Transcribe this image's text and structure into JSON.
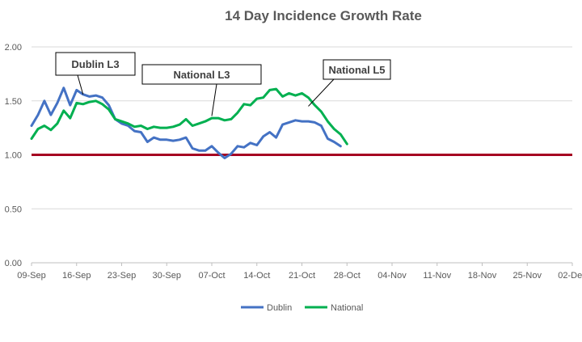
{
  "chart_data": {
    "type": "line",
    "title": "14 Day Incidence Growth Rate",
    "xlabel": "",
    "ylabel": "",
    "ylim": [
      0,
      2
    ],
    "y_ticks": [
      "0.00",
      "0.50",
      "1.00",
      "1.50",
      "2.00"
    ],
    "x_ticks": [
      "09-Sep",
      "16-Sep",
      "23-Sep",
      "30-Sep",
      "07-Oct",
      "14-Oct",
      "21-Oct",
      "28-Oct",
      "04-Nov",
      "11-Nov",
      "18-Nov",
      "25-Nov",
      "02-Dec"
    ],
    "x_start_day": 0,
    "x_end_day": 84,
    "reference_line": {
      "value": 1.0,
      "color": "#a50021"
    },
    "series": [
      {
        "name": "Dublin",
        "color": "#4472c4",
        "start_day": 0,
        "values": [
          1.27,
          1.37,
          1.5,
          1.37,
          1.48,
          1.62,
          1.46,
          1.6,
          1.56,
          1.54,
          1.55,
          1.53,
          1.46,
          1.33,
          1.29,
          1.27,
          1.22,
          1.21,
          1.12,
          1.16,
          1.14,
          1.14,
          1.13,
          1.14,
          1.16,
          1.06,
          1.04,
          1.04,
          1.08,
          1.02,
          0.97,
          1.01,
          1.08,
          1.07,
          1.11,
          1.09,
          1.17,
          1.21,
          1.16,
          1.28,
          1.3,
          1.32,
          1.31,
          1.31,
          1.3,
          1.27,
          1.15,
          1.12,
          1.08
        ]
      },
      {
        "name": "National",
        "color": "#00b050",
        "start_day": 0,
        "values": [
          1.15,
          1.24,
          1.27,
          1.23,
          1.29,
          1.41,
          1.34,
          1.48,
          1.47,
          1.49,
          1.5,
          1.47,
          1.42,
          1.33,
          1.31,
          1.29,
          1.26,
          1.27,
          1.24,
          1.26,
          1.25,
          1.25,
          1.26,
          1.28,
          1.33,
          1.27,
          1.29,
          1.31,
          1.34,
          1.34,
          1.32,
          1.33,
          1.39,
          1.47,
          1.46,
          1.52,
          1.53,
          1.6,
          1.61,
          1.54,
          1.57,
          1.55,
          1.57,
          1.53,
          1.46,
          1.4,
          1.31,
          1.24,
          1.19,
          1.1
        ]
      }
    ],
    "annotations": [
      {
        "label": "Dublin L3",
        "day": 8,
        "value": 1.56
      },
      {
        "label": "National L3",
        "day": 28,
        "value": 1.36
      },
      {
        "label": "National L5",
        "day": 43,
        "value": 1.45
      }
    ]
  }
}
